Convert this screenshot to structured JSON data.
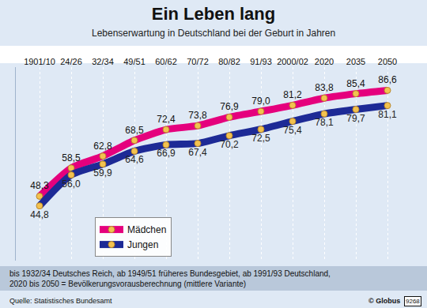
{
  "chart_data": {
    "type": "line",
    "title": "Ein Leben lang",
    "subtitle": "Lebenserwartung in Deutschland bei der Geburt in Jahren",
    "categories": [
      "1901/10",
      "24/26",
      "32/34",
      "49/51",
      "60/62",
      "70/72",
      "80/82",
      "91/93",
      "2000/02",
      "2020",
      "2035",
      "2050"
    ],
    "series": [
      {
        "name": "Mädchen",
        "color": "#e5007d",
        "marker": "circle",
        "values": [
          48.3,
          58.5,
          62.8,
          68.5,
          72.4,
          73.8,
          76.9,
          79.0,
          81.2,
          83.8,
          85.4,
          86.6
        ],
        "value_labels": [
          "48,3",
          "58,5",
          "62,8",
          "68,5",
          "72,4",
          "73,8",
          "76,9",
          "79,0",
          "81,2",
          "83,8",
          "85,4",
          "86,6"
        ]
      },
      {
        "name": "Jungen",
        "color": "#1d2a96",
        "marker": "circle",
        "values": [
          44.8,
          56.0,
          59.9,
          64.6,
          66.9,
          67.4,
          70.2,
          72.5,
          75.4,
          78.1,
          79.7,
          81.1
        ],
        "value_labels": [
          "44,8",
          "56,0",
          "59,9",
          "64,6",
          "66,9",
          "67,4",
          "70,2",
          "72,5",
          "75,4",
          "78,1",
          "79,7",
          "81,1"
        ]
      }
    ],
    "ylim": [
      25,
      95
    ],
    "grid": true,
    "legend": "lower left",
    "data_labels": true,
    "tick_labels": "x",
    "footnote": [
      "bis 1932/34 Deutsches Reich, ab 1949/51 früheres Bundesgebiet, ab 1991/93 Deutschland,",
      "2020 bis 2050 = Bevölkerungsvorausberechnung (mittlere Variante)"
    ],
    "source": "Quelle: Statistisches Bundesamt",
    "copyright": "© Globus",
    "code": "9268"
  }
}
